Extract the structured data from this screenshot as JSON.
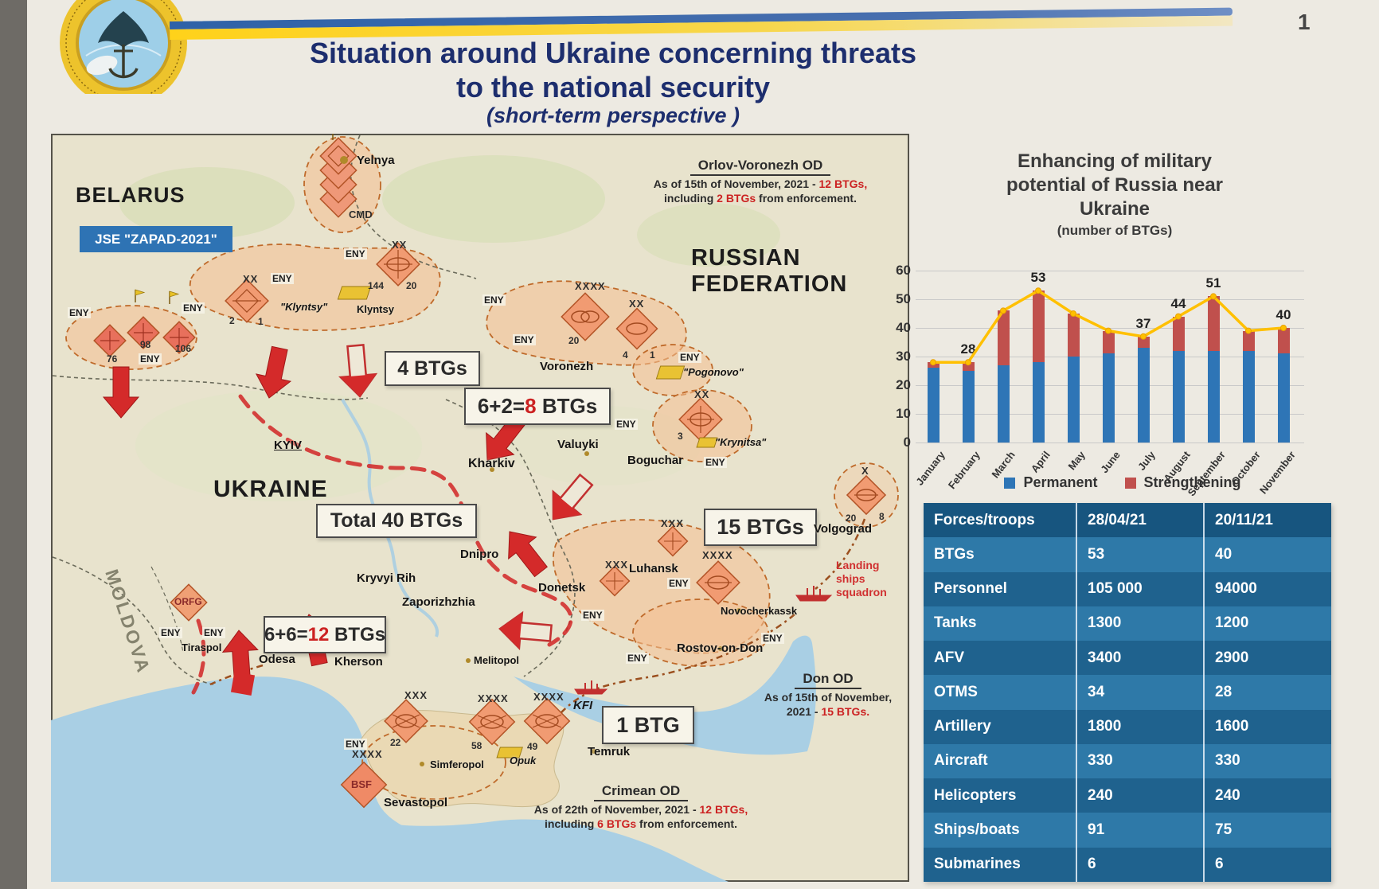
{
  "page": {
    "number": "1"
  },
  "title": {
    "l1": "Situation around Ukraine concerning threats",
    "l2": "to the national security",
    "l3": "(short-term perspective )"
  },
  "chart": {
    "t1": "Enhancing of military",
    "t2": "potential of Russia near",
    "t3": "Ukraine",
    "sub": "(number of BTGs)",
    "legend_permanent": "Permanent",
    "legend_strengthening": "Strengthening"
  },
  "chart_data": {
    "type": "bar",
    "title": "Enhancing of military potential of Russia near Ukraine",
    "subtitle": "(number of BTGs)",
    "categories": [
      "January",
      "February",
      "March",
      "April",
      "May",
      "June",
      "July",
      "August",
      "September",
      "October",
      "November"
    ],
    "series": [
      {
        "name": "Permanent",
        "color": "#2e75b6",
        "values": [
          26,
          25,
          27,
          28,
          30,
          31,
          33,
          32,
          32,
          32,
          31
        ]
      },
      {
        "name": "Strengthening",
        "color": "#c0504d",
        "values": [
          2,
          3,
          19,
          25,
          15,
          8,
          4,
          12,
          19,
          7,
          9
        ]
      }
    ],
    "line": {
      "name": "Total",
      "color": "#ffc000",
      "values": [
        28,
        28,
        46,
        53,
        45,
        39,
        37,
        44,
        51,
        39,
        40
      ]
    },
    "point_labels": [
      "",
      "28",
      "",
      "53",
      "",
      "",
      "37",
      "44",
      "51",
      "",
      "40"
    ],
    "ylim": [
      0,
      60
    ],
    "yticks": [
      0,
      10,
      20,
      30,
      40,
      50,
      60
    ],
    "grid": true,
    "legend_position": "bottom"
  },
  "table": {
    "header": [
      "Forces/troops",
      "28/04/21",
      "20/11/21"
    ],
    "rows": [
      [
        "BTGs",
        "53",
        "40"
      ],
      [
        "Personnel",
        "105 000",
        "94000"
      ],
      [
        "Tanks",
        "1300",
        "1200"
      ],
      [
        "AFV",
        "3400",
        "2900"
      ],
      [
        "OTMS",
        "34",
        "28"
      ],
      [
        "Artillery",
        "1800",
        "1600"
      ],
      [
        "Aircraft",
        "330",
        "330"
      ],
      [
        "Helicopters",
        "240",
        "240"
      ],
      [
        "Ships/boats",
        "91",
        "75"
      ],
      [
        "Submarines",
        "6",
        "6"
      ]
    ]
  },
  "map": {
    "countries": {
      "belarus": "BELARUS",
      "russia1": "RUSSIAN",
      "russia2": "FEDERATION",
      "ukraine": "UKRAINE",
      "moldova": "MOLDOVA"
    },
    "zapad_box": "JSE \"ZAPAD-2021\"",
    "eny": "ENY",
    "ech": {
      "x": "X",
      "xx": "XX",
      "xxx": "XXX",
      "xxxx": "XXXX"
    },
    "special": {
      "cmd": "CMD",
      "bsf": "BSF",
      "orfg": "ORFG",
      "kfi": "KFI"
    },
    "landing": {
      "l1": "Landing",
      "l2": "ships",
      "l3": "squadron"
    },
    "cities": {
      "yelnya": "Yelnya",
      "klyntsy_q": "\"Klyntsy\"",
      "klyntsy": "Klyntsy",
      "voronezh": "Voronezh",
      "pogonovo": "\"Pogonovo\"",
      "krynitsa": "\"Krynitsa\"",
      "valuyki": "Valuyki",
      "kharkiv": "Kharkiv",
      "boguchar": "Boguchar",
      "kyiv": "KYIV",
      "dnipro": "Dnipro",
      "kryvyi_rih": "Kryvyi Rih",
      "zaporizhzhia": "Zaporizhzhia",
      "donetsk": "Donetsk",
      "luhansk": "Luhansk",
      "novocherkassk": "Novocherkassk",
      "rostov": "Rostov-on-Don",
      "volgograd": "Volgograd",
      "tiraspol": "Tiraspol",
      "odesa": "Odesa",
      "kherson": "Kherson",
      "melitopol": "Melitopol",
      "simferopol": "Simferopol",
      "sevastopol": "Sevastopol",
      "temruk": "Temruk",
      "opuk": "Opuk"
    },
    "nums": {
      "n144": "144",
      "n20": "20",
      "n2": "2",
      "n1": "1",
      "n76": "76",
      "n98": "98",
      "n106": "106",
      "n4": "4",
      "n3": "3",
      "n22": "22",
      "n58": "58",
      "n49": "49",
      "n8": "8"
    },
    "boxes": {
      "b4": "4 BTGs",
      "b8_pre": "6+2=",
      "b8_red": "8",
      "b8_post": " BTGs",
      "b12_pre": "6+6=",
      "b12_red": "12",
      "b12_post": " BTGs",
      "b15": "15 BTGs",
      "b1": "1 BTG",
      "total": "Total 40 BTGs"
    },
    "od": {
      "orlov": {
        "title": "Orlov-Voronezh OD",
        "l1_pre": "As of 15th of November, 2021 - ",
        "l1_red": "12 BTGs,",
        "l2_pre": "including ",
        "l2_red": "2 BTGs",
        "l2_post": " from enforcement."
      },
      "don": {
        "title": "Don OD",
        "l1": "As of 15th of November,",
        "l2_pre": "2021 - ",
        "l2_red": "15 BTGs."
      },
      "crimean": {
        "title": "Crimean OD",
        "l1_pre": "As of 22th of November, 2021 - ",
        "l1_red": "12 BTGs,",
        "l2_pre": "including ",
        "l2_red": "6 BTGs",
        "l2_post": " from enforcement."
      }
    }
  }
}
